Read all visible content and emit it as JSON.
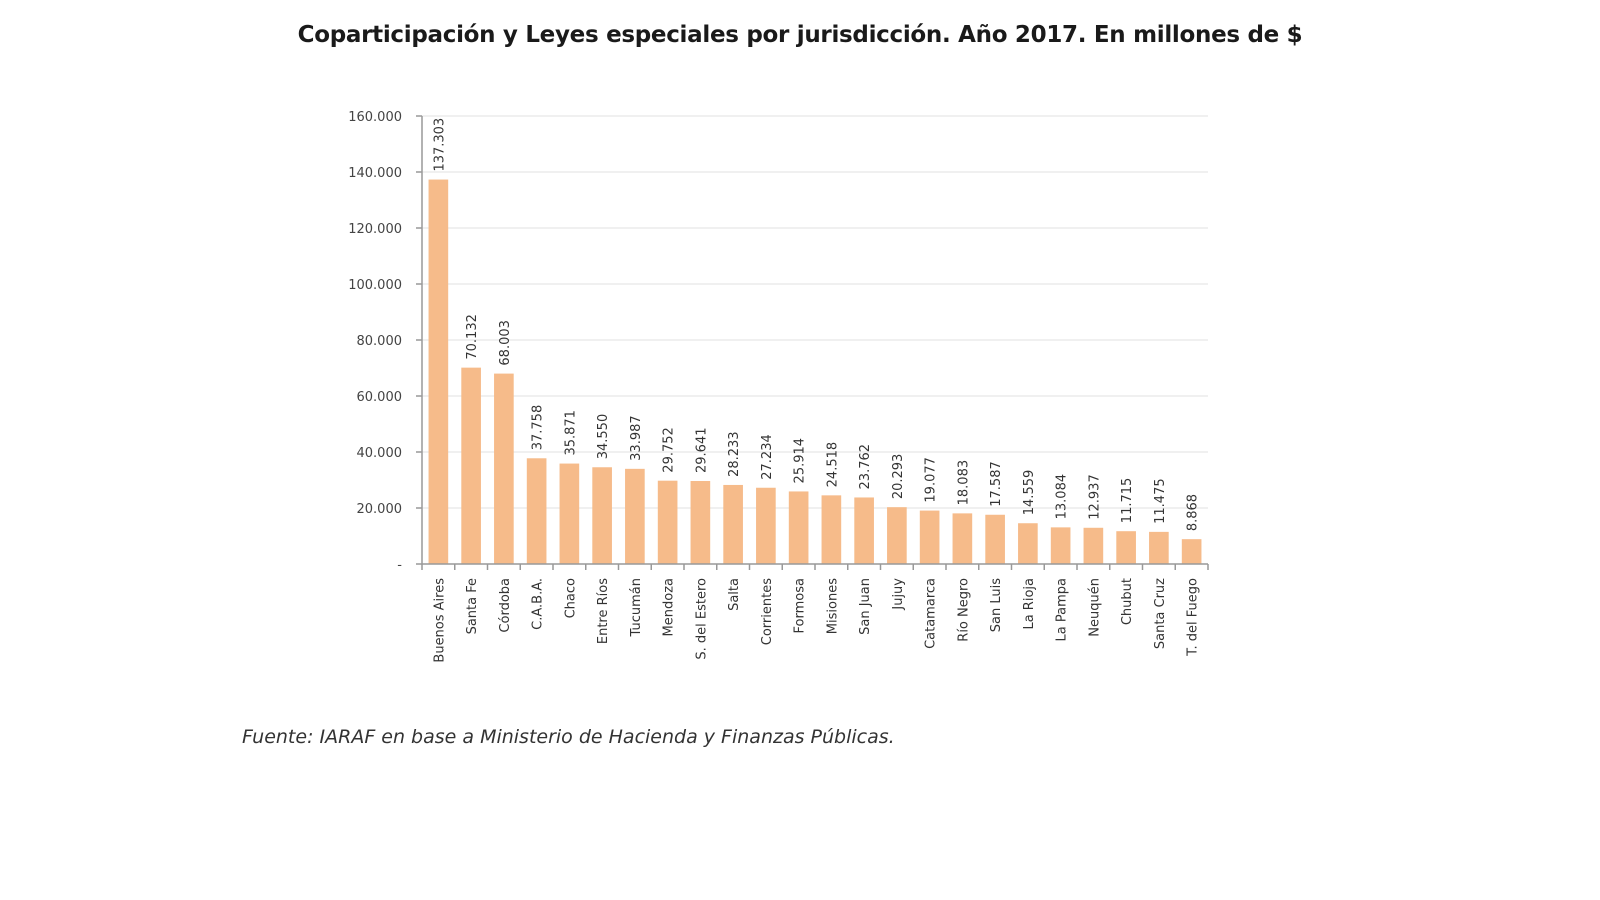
{
  "chart_data": {
    "type": "bar",
    "title": "Coparticipación y Leyes especiales por jurisdicción. Año 2017. En millones de $",
    "xlabel": "",
    "ylabel": "",
    "ylim": [
      0,
      160000
    ],
    "yticks": [
      0,
      20000,
      40000,
      60000,
      80000,
      100000,
      120000,
      140000,
      160000
    ],
    "ytick_labels": [
      "-",
      "20.000",
      "40.000",
      "60.000",
      "80.000",
      "100.000",
      "120.000",
      "140.000",
      "160.000"
    ],
    "grid": true,
    "bar_color": "#f6bb8a",
    "categories": [
      "Buenos Aires",
      "Santa Fe",
      "Córdoba",
      "C.A.B.A.",
      "Chaco",
      "Entre Ríos",
      "Tucumán",
      "Mendoza",
      "S. del Estero",
      "Salta",
      "Corrientes",
      "Formosa",
      "Misiones",
      "San Juan",
      "Jujuy",
      "Catamarca",
      "Río Negro",
      "San Luis",
      "La Rioja",
      "La Pampa",
      "Neuquén",
      "Chubut",
      "Santa Cruz",
      "T. del Fuego"
    ],
    "values": [
      137303,
      70132,
      68003,
      37758,
      35871,
      34550,
      33987,
      29752,
      29641,
      28233,
      27234,
      25914,
      24518,
      23762,
      20293,
      19077,
      18083,
      17587,
      14559,
      13084,
      12937,
      11715,
      11475,
      8868
    ],
    "data_labels": [
      "137.303",
      "70.132",
      "68.003",
      "37.758",
      "35.871",
      "34.550",
      "33.987",
      "29.752",
      "29.641",
      "28.233",
      "27.234",
      "25.914",
      "24.518",
      "23.762",
      "20.293",
      "19.077",
      "18.083",
      "17.587",
      "14.559",
      "13.084",
      "12.937",
      "11.715",
      "11.475",
      "8.868"
    ]
  },
  "source_note": "Fuente: IARAF en base a Ministerio de Hacienda y Finanzas Públicas."
}
